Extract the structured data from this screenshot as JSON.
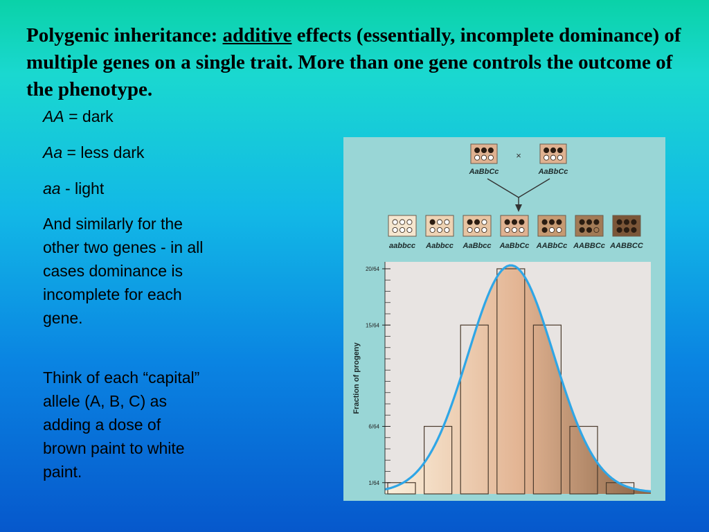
{
  "slide": {
    "title_pre": "Polygenic inheritance: ",
    "title_underlined": "additive",
    "title_post": " effects (essentially, incomplete dominance) of multiple genes on a single trait.  More than one gene controls the outcome of the phenotype.",
    "key": [
      {
        "symbol": "AA",
        "sep": " = ",
        "meaning": "dark"
      },
      {
        "symbol": "Aa",
        "sep": " = ",
        "meaning": "less dark"
      },
      {
        "symbol": "aa",
        "sep": " - ",
        "meaning": "light"
      }
    ],
    "para1": "And similarly for the other two genes - in all cases dominance is incomplete for each gene.",
    "para2": "Think of each “capital” allele (A, B, C) as adding a dose of brown paint to white paint."
  },
  "figure": {
    "cross": {
      "parent1": "AaBbCc",
      "parent2": "AaBbCc",
      "symbol": "×",
      "parent_filled_dots": 3
    },
    "genotypes": [
      {
        "label": "aabbcc",
        "filled_dots": 0,
        "color": "#f5e6cf"
      },
      {
        "label": "Aabbcc",
        "filled_dots": 1,
        "color": "#eed3b4"
      },
      {
        "label": "AaBbcc",
        "filled_dots": 2,
        "color": "#e7c4a2"
      },
      {
        "label": "AaBbCc",
        "filled_dots": 3,
        "color": "#dfb291"
      },
      {
        "label": "AABbCc",
        "filled_dots": 4,
        "color": "#c69a72"
      },
      {
        "label": "AABBCc",
        "filled_dots": 5,
        "color": "#a27a56"
      },
      {
        "label": "AABBCC",
        "filled_dots": 6,
        "color": "#7b5638"
      }
    ],
    "curve_color": "#2fa6e6"
  },
  "chart_data": {
    "type": "bar",
    "ylabel": "Fraction of progeny",
    "categories": [
      "aabbcc",
      "Aabbcc",
      "AaBbcc",
      "AaBbCc",
      "AABbCc",
      "AABBCc",
      "AABBCC"
    ],
    "values": [
      1,
      6,
      15,
      20,
      15,
      6,
      1
    ],
    "ylim": [
      0,
      20
    ],
    "yticks": [
      {
        "value": 1,
        "label": "1/64"
      },
      {
        "value": 6,
        "label": "6/64"
      },
      {
        "value": 15,
        "label": "15/64"
      },
      {
        "value": 20,
        "label": "20/64"
      }
    ]
  }
}
